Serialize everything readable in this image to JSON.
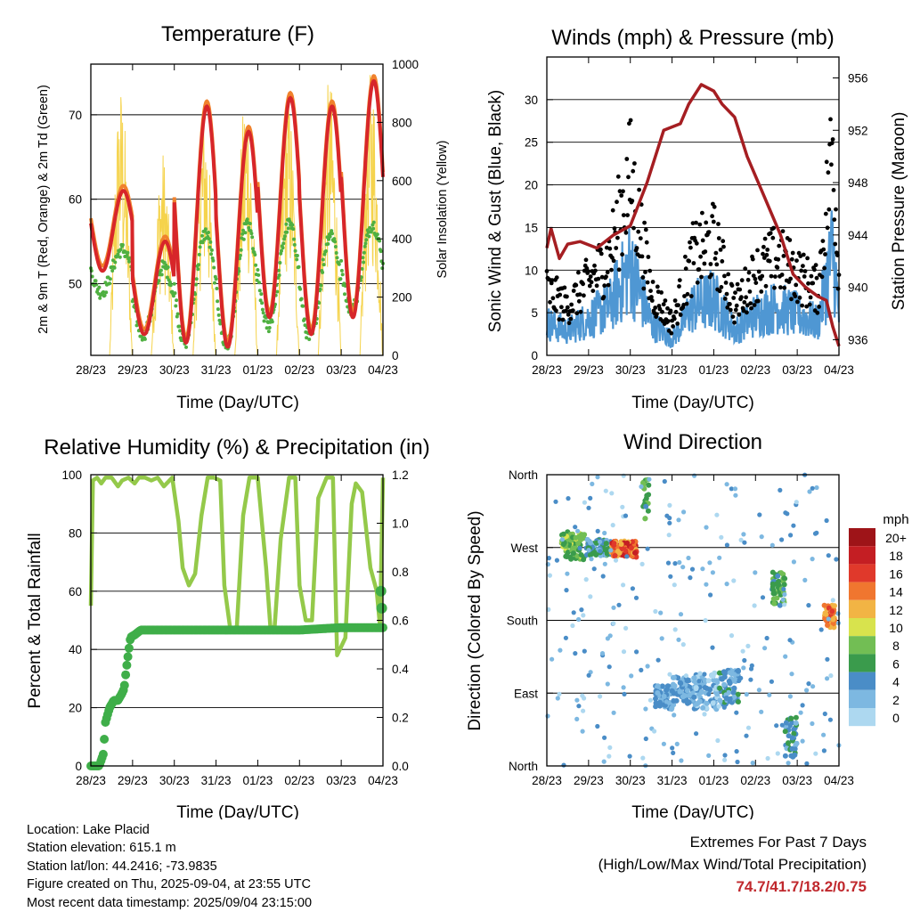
{
  "chart_data": [
    {
      "type": "line",
      "title": "Temperature (F)",
      "xlabel": "Time (Day/UTC)",
      "ylabel": "2m & 9m T (Red, Orange) & 2m Td (Green)",
      "ylabel_right": "Solar Insolation (Yellow)",
      "x_ticks": [
        "28/23",
        "29/23",
        "30/23",
        "31/23",
        "01/23",
        "02/23",
        "03/23",
        "04/23"
      ],
      "ylim": [
        41.5,
        76
      ],
      "y_ticks": [
        50,
        60,
        70
      ],
      "y2lim": [
        0,
        1000
      ],
      "y2_ticks": [
        0,
        200,
        400,
        600,
        800,
        1000
      ],
      "colors": {
        "t2m": "#d7262a",
        "t9m": "#f0822d",
        "td2m": "#4fb041",
        "solar": "#f5d34c"
      },
      "day_cycle": {
        "t_min": [
          51.5,
          44,
          43,
          42.5,
          46,
          44,
          46
        ],
        "t_max": [
          61,
          55,
          71,
          68,
          72,
          71,
          74
        ],
        "td_min": [
          49,
          44,
          43,
          42.5,
          45,
          43.5,
          47
        ],
        "td_max": [
          54,
          52,
          56,
          57,
          57,
          56,
          57
        ],
        "sol_max": [
          940,
          710,
          870,
          935,
          920,
          960,
          990
        ]
      },
      "grid": true
    },
    {
      "type": "scatter",
      "title": "Winds (mph) & Pressure (mb)",
      "xlabel": "Time (Day/UTC)",
      "ylabel": "Sonic Wind & Gust (Blue, Black)",
      "ylabel_right": "Station Pressure (Maroon)",
      "x_ticks": [
        "28/23",
        "29/23",
        "30/23",
        "31/23",
        "01/23",
        "02/23",
        "03/23",
        "04/23"
      ],
      "ylim": [
        0,
        35
      ],
      "y_ticks": [
        0,
        5,
        10,
        15,
        20,
        25,
        30
      ],
      "y2lim": [
        934.8,
        957.6
      ],
      "y2_ticks": [
        936,
        940,
        944,
        948,
        952,
        956
      ],
      "colors": {
        "wind": "#4f97d3",
        "gust": "#000000",
        "pressure": "#a51e22"
      },
      "wind_envelope": [
        [
          0,
          4
        ],
        [
          0.5,
          3
        ],
        [
          1.5,
          6
        ],
        [
          2,
          11
        ],
        [
          2.5,
          4
        ],
        [
          3,
          2
        ],
        [
          3.5,
          6
        ],
        [
          4,
          7
        ],
        [
          4.5,
          3
        ],
        [
          5,
          5
        ],
        [
          5.5,
          6
        ],
        [
          6,
          5
        ],
        [
          6.5,
          4
        ],
        [
          6.85,
          13
        ],
        [
          7,
          5
        ]
      ],
      "pressure": {
        "x": [
          0,
          0.1,
          0.3,
          0.5,
          0.8,
          1.2,
          1.6,
          2.0,
          2.4,
          2.8,
          3.2,
          3.4,
          3.7,
          4.0,
          4.2,
          4.5,
          4.8,
          5.2,
          5.6,
          5.9,
          6.2,
          6.5,
          6.7,
          6.85,
          7.0
        ],
        "y": [
          943,
          944.5,
          942.2,
          943.3,
          943.5,
          943,
          944,
          944.7,
          948,
          952,
          952.5,
          954,
          955.5,
          955,
          954,
          953,
          950,
          947,
          944,
          941,
          940,
          939.3,
          939,
          937,
          935.5
        ]
      },
      "grid": true
    },
    {
      "type": "line",
      "title": "Relative Humidity (%) & Precipitation (in)",
      "xlabel": "Time (Day/UTC)",
      "ylabel": "Percent & Total Rainfall",
      "x_ticks": [
        "28/23",
        "29/23",
        "30/23",
        "31/23",
        "01/23",
        "02/23",
        "03/23",
        "04/23"
      ],
      "ylim": [
        0,
        100
      ],
      "y_ticks": [
        0,
        20,
        40,
        60,
        80,
        100
      ],
      "y2lim": [
        0,
        1.2
      ],
      "y2_ticks": [
        "0.0",
        "0.2",
        "0.4",
        "0.6",
        "0.8",
        "1.0",
        "1.2"
      ],
      "colors": {
        "rh": "#94c94a",
        "precip": "#3fae49"
      },
      "rh": {
        "x": [
          0,
          0.05,
          0.15,
          0.25,
          0.35,
          0.5,
          0.65,
          0.75,
          0.9,
          1.05,
          1.15,
          1.3,
          1.45,
          1.6,
          1.75,
          1.95,
          2.1,
          2.2,
          2.35,
          2.5,
          2.65,
          2.8,
          2.95,
          3.1,
          3.2,
          3.35,
          3.5,
          3.65,
          3.8,
          4.0,
          4.2,
          4.3,
          4.4,
          4.55,
          4.75,
          4.9,
          5.0,
          5.15,
          5.3,
          5.45,
          5.65,
          5.8,
          5.9,
          6.1,
          6.25,
          6.35,
          6.5,
          6.7,
          6.85,
          6.93,
          7.0
        ],
        "y": [
          55,
          98,
          99,
          97,
          99,
          99,
          96,
          98,
          99,
          97,
          99,
          99,
          98,
          99,
          96,
          99,
          84,
          68,
          62,
          66,
          86,
          99,
          99,
          98,
          62,
          46,
          48,
          86,
          99,
          99,
          68,
          48,
          47,
          78,
          99,
          99,
          62,
          50,
          50,
          92,
          99,
          99,
          38,
          44,
          90,
          97,
          94,
          68,
          60,
          48,
          99
        ]
      },
      "precip": {
        "x": [
          0,
          0.2,
          0.3,
          0.35,
          0.45,
          0.55,
          0.65,
          0.75,
          0.8,
          0.85,
          0.95,
          1.05,
          1.2,
          1.5,
          3,
          4,
          5,
          6,
          7
        ],
        "y": [
          0,
          0,
          0.05,
          0.18,
          0.24,
          0.27,
          0.27,
          0.3,
          0.32,
          0.4,
          0.53,
          0.54,
          0.56,
          0.56,
          0.56,
          0.56,
          0.56,
          0.57,
          0.57
        ]
      },
      "final_points": [
        {
          "x": 6.95,
          "y": 0.72
        },
        {
          "x": 6.97,
          "y": 0.65
        }
      ],
      "grid": true
    },
    {
      "type": "scatter",
      "title": "Wind Direction",
      "xlabel": "Time (Day/UTC)",
      "ylabel": "Direction (Colored By Speed)",
      "x_ticks": [
        "28/23",
        "29/23",
        "30/23",
        "31/23",
        "01/23",
        "02/23",
        "03/23",
        "04/23"
      ],
      "y_ticks": [
        "North",
        "West",
        "South",
        "East",
        "North"
      ],
      "ylim": [
        360,
        0
      ],
      "legend_title": "mph",
      "legend_position": "right",
      "legend_labels": [
        "20+",
        "18",
        "16",
        "14",
        "12",
        "10",
        "8",
        "6",
        "4",
        "2",
        "0"
      ],
      "speed_colors": [
        "#add8f0",
        "#7db8e1",
        "#4a8dc7",
        "#3a9b4c",
        "#72be54",
        "#d8e34d",
        "#f2b444",
        "#f0762f",
        "#e0392b",
        "#c41e23",
        "#9e1418"
      ],
      "clusters": [
        {
          "x": [
            0.35,
            0.9
          ],
          "dir": [
            255,
            290
          ],
          "speed": [
            5,
            10
          ]
        },
        {
          "x": [
            0.95,
            1.55
          ],
          "dir": [
            260,
            280
          ],
          "speed": [
            2,
            7
          ]
        },
        {
          "x": [
            1.55,
            2.15
          ],
          "dir": [
            258,
            278
          ],
          "speed": [
            11,
            18
          ]
        },
        {
          "x": [
            2.3,
            2.45
          ],
          "dir": [
            300,
            355
          ],
          "speed": [
            4,
            9
          ]
        },
        {
          "x": [
            2.6,
            3.0
          ],
          "dir": [
            70,
            100
          ],
          "speed": [
            1,
            5
          ]
        },
        {
          "x": [
            3.0,
            3.5
          ],
          "dir": [
            75,
            110
          ],
          "speed": [
            1,
            5
          ]
        },
        {
          "x": [
            3.5,
            4.1
          ],
          "dir": [
            70,
            115
          ],
          "speed": [
            0,
            4
          ]
        },
        {
          "x": [
            4.1,
            4.6
          ],
          "dir": [
            75,
            120
          ],
          "speed": [
            1,
            6
          ]
        },
        {
          "x": [
            5.4,
            5.7
          ],
          "dir": [
            195,
            240
          ],
          "speed": [
            4,
            9
          ]
        },
        {
          "x": [
            5.7,
            6.0
          ],
          "dir": [
            10,
            60
          ],
          "speed": [
            2,
            6
          ]
        },
        {
          "x": [
            6.65,
            6.9
          ],
          "dir": [
            170,
            200
          ],
          "speed": [
            11,
            17
          ]
        }
      ],
      "grid": true
    }
  ],
  "info": {
    "location": "Location: Lake Placid",
    "elevation": "Station elevation: 615.1 m",
    "latlon": "Station lat/lon: 44.2416; -73.9835",
    "created": "Figure created on Thu, 2025-09-04, at 23:55 UTC",
    "recent": "Most recent data timestamp: 2025/09/04 23:15:00"
  },
  "extremes": {
    "title": "Extremes For Past 7 Days",
    "subtitle": "(High/Low/Max Wind/Total Precipitation)",
    "values": "74.7/41.7/18.2/0.75"
  }
}
